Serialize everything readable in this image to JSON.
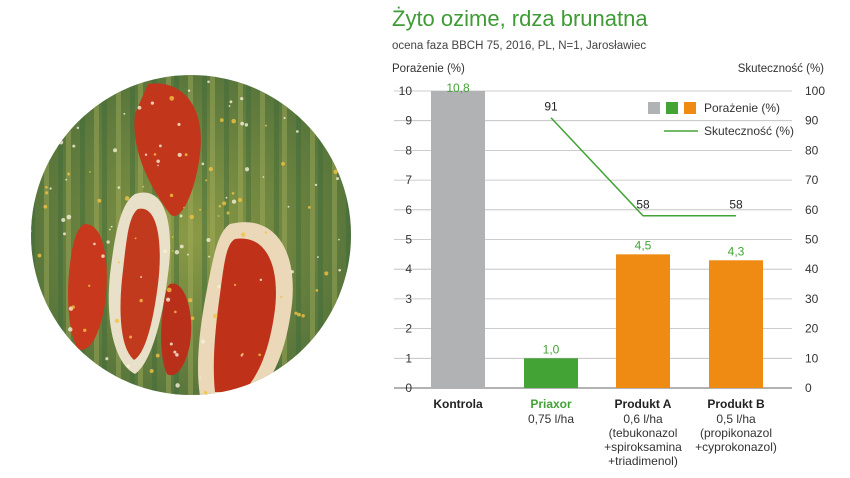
{
  "chart_data": {
    "type": "bar",
    "title": "Żyto ozime, rdza brunatna",
    "subtitle": "ocena faza BBCH 75, 2016, PL, N=1, Jarosławiec",
    "ylabel": "Porażenie (%)",
    "y2label": "Skuteczność (%)",
    "ylim": [
      0,
      10
    ],
    "y2lim": [
      0,
      100
    ],
    "yticks": [
      "0",
      "1",
      "2",
      "3",
      "4",
      "5",
      "6",
      "7",
      "8",
      "9",
      "10"
    ],
    "y2ticks": [
      "0",
      "10",
      "20",
      "30",
      "40",
      "50",
      "60",
      "70",
      "80",
      "90",
      "100"
    ],
    "grid": true,
    "legend_position": "top-right",
    "legend": {
      "bars_label": "Porażenie (%)",
      "line_label": "Skuteczność (%)"
    },
    "categories": [
      {
        "name": "Kontrola",
        "sub": []
      },
      {
        "name": "Priaxor",
        "sub": [
          "0,75 l/ha"
        ]
      },
      {
        "name": "Produkt A",
        "sub": [
          "0,6 l/ha",
          "(tebukonazol",
          "+spiroksamina",
          "+triadimenol)"
        ]
      },
      {
        "name": "Produkt B",
        "sub": [
          "0,5 l/ha",
          "(propikonazol",
          "+cyprokonazol)"
        ]
      }
    ],
    "series": [
      {
        "name": "Porażenie (%)",
        "type": "bar",
        "axis": "left",
        "values": [
          10.8,
          1.0,
          4.5,
          4.3
        ],
        "value_labels": [
          "10,8",
          "1,0",
          "4,5",
          "4,3"
        ],
        "colors": [
          "#b1b2b4",
          "#43a335",
          "#ef8a12",
          "#ef8a12"
        ]
      },
      {
        "name": "Skuteczność (%)",
        "type": "line",
        "axis": "right",
        "values": [
          null,
          91,
          58,
          58
        ],
        "value_labels": [
          "",
          "91",
          "58",
          "58"
        ],
        "color": "#43a335"
      }
    ]
  },
  "colors": {
    "title_green": "#3f9b36",
    "kontrola_gray": "#b1b2b4",
    "priaxor_green": "#43a335",
    "product_orange": "#ef8a12",
    "grid": "#bcbcbc"
  },
  "image": {
    "description_icon": "leaf-rust-micrograph-icon"
  }
}
